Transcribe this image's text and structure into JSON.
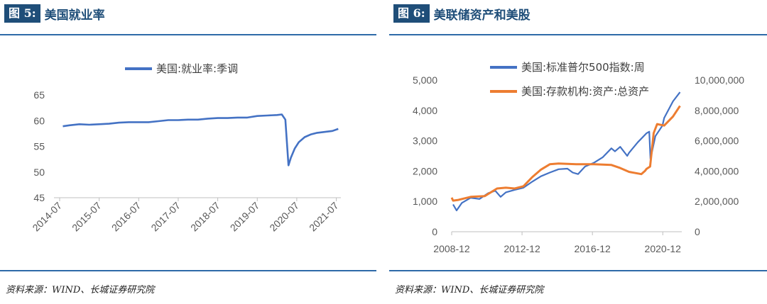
{
  "left": {
    "fig_label": "图 5:",
    "fig_title": "美国就业率",
    "source": "资料来源：WIND、长城证券研究院"
  },
  "right": {
    "fig_label": "图 6:",
    "fig_title": "美联储资产和美股",
    "source": "资料来源：WIND、长城证券研究院"
  },
  "colors": {
    "blue": "#4472c4",
    "orange": "#ed7d31",
    "header": "#1f4e79"
  },
  "chart_data": [
    {
      "type": "line",
      "title": "美国就业率",
      "legend": [
        "美国:就业率:季调"
      ],
      "legend_position": "top",
      "x_tick_labels": [
        "2014-07",
        "2015-07",
        "2016-07",
        "2017-07",
        "2018-07",
        "2019-07",
        "2020-07",
        "2021-07"
      ],
      "x_range": [
        2014.5,
        2021.58
      ],
      "y_tick_labels": [
        "45",
        "50",
        "55",
        "60",
        "65"
      ],
      "ylim": [
        45,
        65
      ],
      "grid": false,
      "series": [
        {
          "name": "美国:就业率:季调",
          "color": "#4472c4",
          "x": [
            2014.58,
            2014.75,
            2015.0,
            2015.25,
            2015.5,
            2015.75,
            2016.0,
            2016.25,
            2016.5,
            2016.75,
            2017.0,
            2017.25,
            2017.5,
            2017.75,
            2018.0,
            2018.25,
            2018.5,
            2018.75,
            2019.0,
            2019.25,
            2019.5,
            2019.75,
            2020.0,
            2020.12,
            2020.21,
            2020.29,
            2020.35,
            2020.45,
            2020.55,
            2020.7,
            2020.85,
            2021.0,
            2021.2,
            2021.4,
            2021.55
          ],
          "y": [
            58.9,
            59.1,
            59.3,
            59.2,
            59.3,
            59.4,
            59.6,
            59.7,
            59.7,
            59.7,
            59.9,
            60.1,
            60.1,
            60.2,
            60.2,
            60.4,
            60.5,
            60.5,
            60.6,
            60.6,
            60.9,
            61.0,
            61.1,
            61.2,
            60.2,
            51.3,
            52.8,
            54.6,
            55.8,
            56.8,
            57.3,
            57.6,
            57.8,
            58.0,
            58.4
          ]
        }
      ]
    },
    {
      "type": "line",
      "title": "美联储资产和美股",
      "legend": [
        "美国:标准普尔500指数:周",
        "美国:存款机构:资产:总资产"
      ],
      "legend_position": "top",
      "x_tick_labels": [
        "2008-12",
        "2012-12",
        "2016-12",
        "2020-12"
      ],
      "x_range": [
        2008.92,
        2022.0
      ],
      "y_left_tick_labels": [
        "0",
        "1,000",
        "2,000",
        "3,000",
        "4,000",
        "5,000"
      ],
      "y_left_range": [
        0,
        5000
      ],
      "y_right_tick_labels": [
        "0",
        "2,000,000",
        "4,000,000",
        "6,000,000",
        "8,000,000",
        "10,000,000"
      ],
      "y_right_range": [
        0,
        10000000
      ],
      "grid": false,
      "series": [
        {
          "name": "美国:标准普尔500指数:周",
          "axis": "left",
          "color": "#4472c4",
          "x": [
            2009.0,
            2009.2,
            2009.5,
            2010.0,
            2010.5,
            2011.0,
            2011.4,
            2011.7,
            2012.0,
            2012.5,
            2013.0,
            2013.5,
            2014.0,
            2014.5,
            2015.0,
            2015.5,
            2015.8,
            2016.1,
            2016.5,
            2017.0,
            2017.5,
            2018.0,
            2018.2,
            2018.5,
            2018.9,
            2019.0,
            2019.5,
            2020.0,
            2020.15,
            2020.22,
            2020.5,
            2020.9,
            2021.0,
            2021.5,
            2021.9
          ],
          "y": [
            900,
            700,
            950,
            1120,
            1080,
            1270,
            1350,
            1150,
            1300,
            1380,
            1450,
            1650,
            1830,
            1950,
            2060,
            2080,
            1950,
            1900,
            2150,
            2270,
            2450,
            2750,
            2650,
            2800,
            2500,
            2600,
            2950,
            3250,
            3300,
            2400,
            3150,
            3500,
            3750,
            4300,
            4600
          ]
        },
        {
          "name": "美国:存款机构:资产:总资产",
          "axis": "right",
          "color": "#ed7d31",
          "x": [
            2008.92,
            2009.0,
            2009.3,
            2010.0,
            2010.8,
            2011.5,
            2012.0,
            2012.5,
            2013.0,
            2013.5,
            2014.0,
            2014.5,
            2015.0,
            2016.0,
            2017.0,
            2018.0,
            2018.5,
            2019.0,
            2019.7,
            2019.9,
            2020.0,
            2020.2,
            2020.4,
            2020.6,
            2021.0,
            2021.5,
            2021.9
          ],
          "y": [
            2250000,
            2050000,
            2100000,
            2300000,
            2350000,
            2850000,
            2900000,
            2850000,
            3000000,
            3600000,
            4100000,
            4450000,
            4500000,
            4450000,
            4450000,
            4400000,
            4200000,
            3950000,
            3800000,
            4000000,
            4150000,
            4300000,
            6500000,
            7100000,
            7000000,
            7600000,
            8300000
          ]
        }
      ]
    }
  ]
}
